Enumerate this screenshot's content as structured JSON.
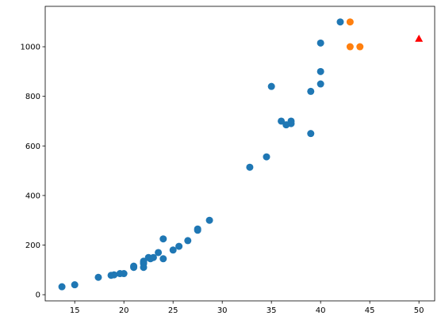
{
  "chart_data": {
    "type": "scatter",
    "xlim": [
      12.0,
      51.6
    ],
    "ylim": [
      -25,
      1163
    ],
    "xticks": [
      15,
      20,
      25,
      30,
      35,
      40,
      45,
      50
    ],
    "yticks": [
      0,
      200,
      400,
      600,
      800,
      1000
    ],
    "series": [
      {
        "color": "#1f77b4",
        "marker": "o",
        "x": [
          13.7,
          15,
          17.4,
          18.7,
          19,
          19.6,
          20,
          21,
          21,
          22,
          22,
          22,
          22,
          22.5,
          22.7,
          23,
          23.5,
          24,
          24,
          25,
          25.6,
          26.5,
          27.5,
          27.5,
          28.7,
          32.8,
          34.5,
          35,
          36,
          36.5,
          37,
          37,
          39,
          39,
          40,
          40,
          40,
          42
        ],
        "values": [
          32,
          40,
          70,
          78,
          80,
          85,
          85,
          110,
          115,
          110,
          125,
          130,
          135,
          150,
          145,
          150,
          170,
          225,
          145,
          180,
          195,
          218,
          260,
          265,
          300,
          514,
          556,
          840,
          700,
          685,
          700,
          690,
          820,
          650,
          850,
          900,
          1015,
          1100
        ]
      },
      {
        "color": "#ff7f0e",
        "marker": "o",
        "x": [
          43,
          43,
          44
        ],
        "values": [
          1100,
          1000,
          1000
        ]
      },
      {
        "color": "#ff0000",
        "marker": "^",
        "x": [
          50
        ],
        "values": [
          1033
        ]
      }
    ]
  }
}
